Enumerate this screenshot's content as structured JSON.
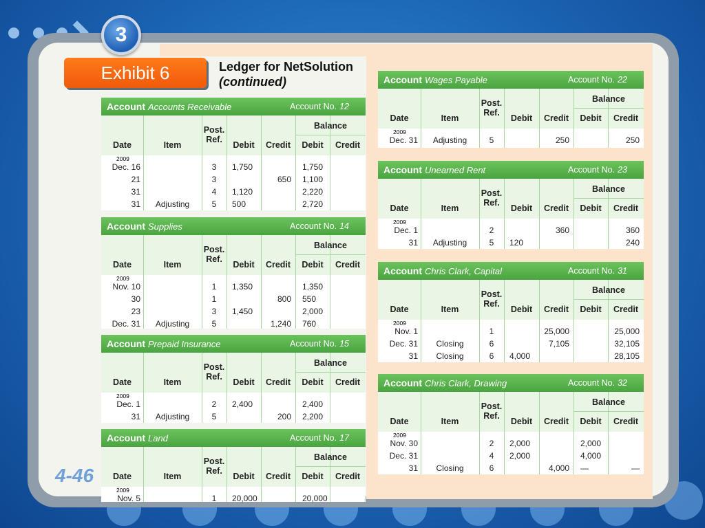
{
  "slide": {
    "badge": "3",
    "exhibit": "Exhibit 6",
    "title": "Ledger for NetSolution",
    "subtitle": "(continued)",
    "page_number": "4-46"
  },
  "colors": {
    "header_green": "#4ca843",
    "exhibit_orange": "#f36a12",
    "accent_peach": "#fbe3cc"
  },
  "columns": {
    "date": "Date",
    "item": "Item",
    "post": "Post.",
    "ref": "Ref.",
    "debit": "Debit",
    "credit": "Credit",
    "balance": "Balance",
    "account": "Account",
    "account_no": "Account No."
  },
  "accounts": [
    {
      "name": "Accounts Receivable",
      "number": "12",
      "year": "2009",
      "rows": [
        {
          "date": "Dec. 16",
          "item": "",
          "ref": "3",
          "debit": "1,750",
          "credit": "",
          "bal_debit": "1,750",
          "bal_credit": ""
        },
        {
          "date": "21",
          "item": "",
          "ref": "3",
          "debit": "",
          "credit": "650",
          "bal_debit": "1,100",
          "bal_credit": ""
        },
        {
          "date": "31",
          "item": "",
          "ref": "4",
          "debit": "1,120",
          "credit": "",
          "bal_debit": "2,220",
          "bal_credit": ""
        },
        {
          "date": "31",
          "item": "Adjusting",
          "ref": "5",
          "debit": "500",
          "credit": "",
          "bal_debit": "2,720",
          "bal_credit": ""
        }
      ]
    },
    {
      "name": "Supplies",
      "number": "14",
      "year": "2009",
      "rows": [
        {
          "date": "Nov. 10",
          "item": "",
          "ref": "1",
          "debit": "1,350",
          "credit": "",
          "bal_debit": "1,350",
          "bal_credit": ""
        },
        {
          "date": "30",
          "item": "",
          "ref": "1",
          "debit": "",
          "credit": "800",
          "bal_debit": "550",
          "bal_credit": ""
        },
        {
          "date": "23",
          "item": "",
          "ref": "3",
          "debit": "1,450",
          "credit": "",
          "bal_debit": "2,000",
          "bal_credit": ""
        },
        {
          "date": "Dec. 31",
          "item": "Adjusting",
          "ref": "5",
          "debit": "",
          "credit": "1,240",
          "bal_debit": "760",
          "bal_credit": ""
        }
      ]
    },
    {
      "name": "Prepaid Insurance",
      "number": "15",
      "year": "2009",
      "rows": [
        {
          "date": "Dec. 1",
          "item": "",
          "ref": "2",
          "debit": "2,400",
          "credit": "",
          "bal_debit": "2,400",
          "bal_credit": ""
        },
        {
          "date": "31",
          "item": "Adjusting",
          "ref": "5",
          "debit": "",
          "credit": "200",
          "bal_debit": "2,200",
          "bal_credit": ""
        }
      ]
    },
    {
      "name": "Land",
      "number": "17",
      "year": "2009",
      "rows": [
        {
          "date": "Nov. 5",
          "item": "",
          "ref": "1",
          "debit": "20,000",
          "credit": "",
          "bal_debit": "20,000",
          "bal_credit": ""
        }
      ]
    },
    {
      "name": "Wages Payable",
      "number": "22",
      "year": "2009",
      "rows": [
        {
          "date": "Dec. 31",
          "item": "Adjusting",
          "ref": "5",
          "debit": "",
          "credit": "250",
          "bal_debit": "",
          "bal_credit": "250"
        }
      ]
    },
    {
      "name": "Unearned Rent",
      "number": "23",
      "year": "2009",
      "rows": [
        {
          "date": "Dec. 1",
          "item": "",
          "ref": "2",
          "debit": "",
          "credit": "360",
          "bal_debit": "",
          "bal_credit": "360"
        },
        {
          "date": "31",
          "item": "Adjusting",
          "ref": "5",
          "debit": "120",
          "credit": "",
          "bal_debit": "",
          "bal_credit": "240"
        }
      ]
    },
    {
      "name": "Chris Clark, Capital",
      "number": "31",
      "year": "2009",
      "rows": [
        {
          "date": "Nov. 1",
          "item": "",
          "ref": "1",
          "debit": "",
          "credit": "25,000",
          "bal_debit": "",
          "bal_credit": "25,000"
        },
        {
          "date": "Dec. 31",
          "item": "Closing",
          "ref": "6",
          "debit": "",
          "credit": "7,105",
          "bal_debit": "",
          "bal_credit": "32,105"
        },
        {
          "date": "31",
          "item": "Closing",
          "ref": "6",
          "debit": "4,000",
          "credit": "",
          "bal_debit": "",
          "bal_credit": "28,105"
        }
      ]
    },
    {
      "name": "Chris Clark, Drawing",
      "number": "32",
      "year": "2009",
      "rows": [
        {
          "date": "Nov. 30",
          "item": "",
          "ref": "2",
          "debit": "2,000",
          "credit": "",
          "bal_debit": "2,000",
          "bal_credit": ""
        },
        {
          "date": "Dec. 31",
          "item": "",
          "ref": "4",
          "debit": "2,000",
          "credit": "",
          "bal_debit": "4,000",
          "bal_credit": ""
        },
        {
          "date": "31",
          "item": "Closing",
          "ref": "6",
          "debit": "",
          "credit": "4,000",
          "bal_debit": "—",
          "bal_credit": "—"
        }
      ]
    }
  ]
}
